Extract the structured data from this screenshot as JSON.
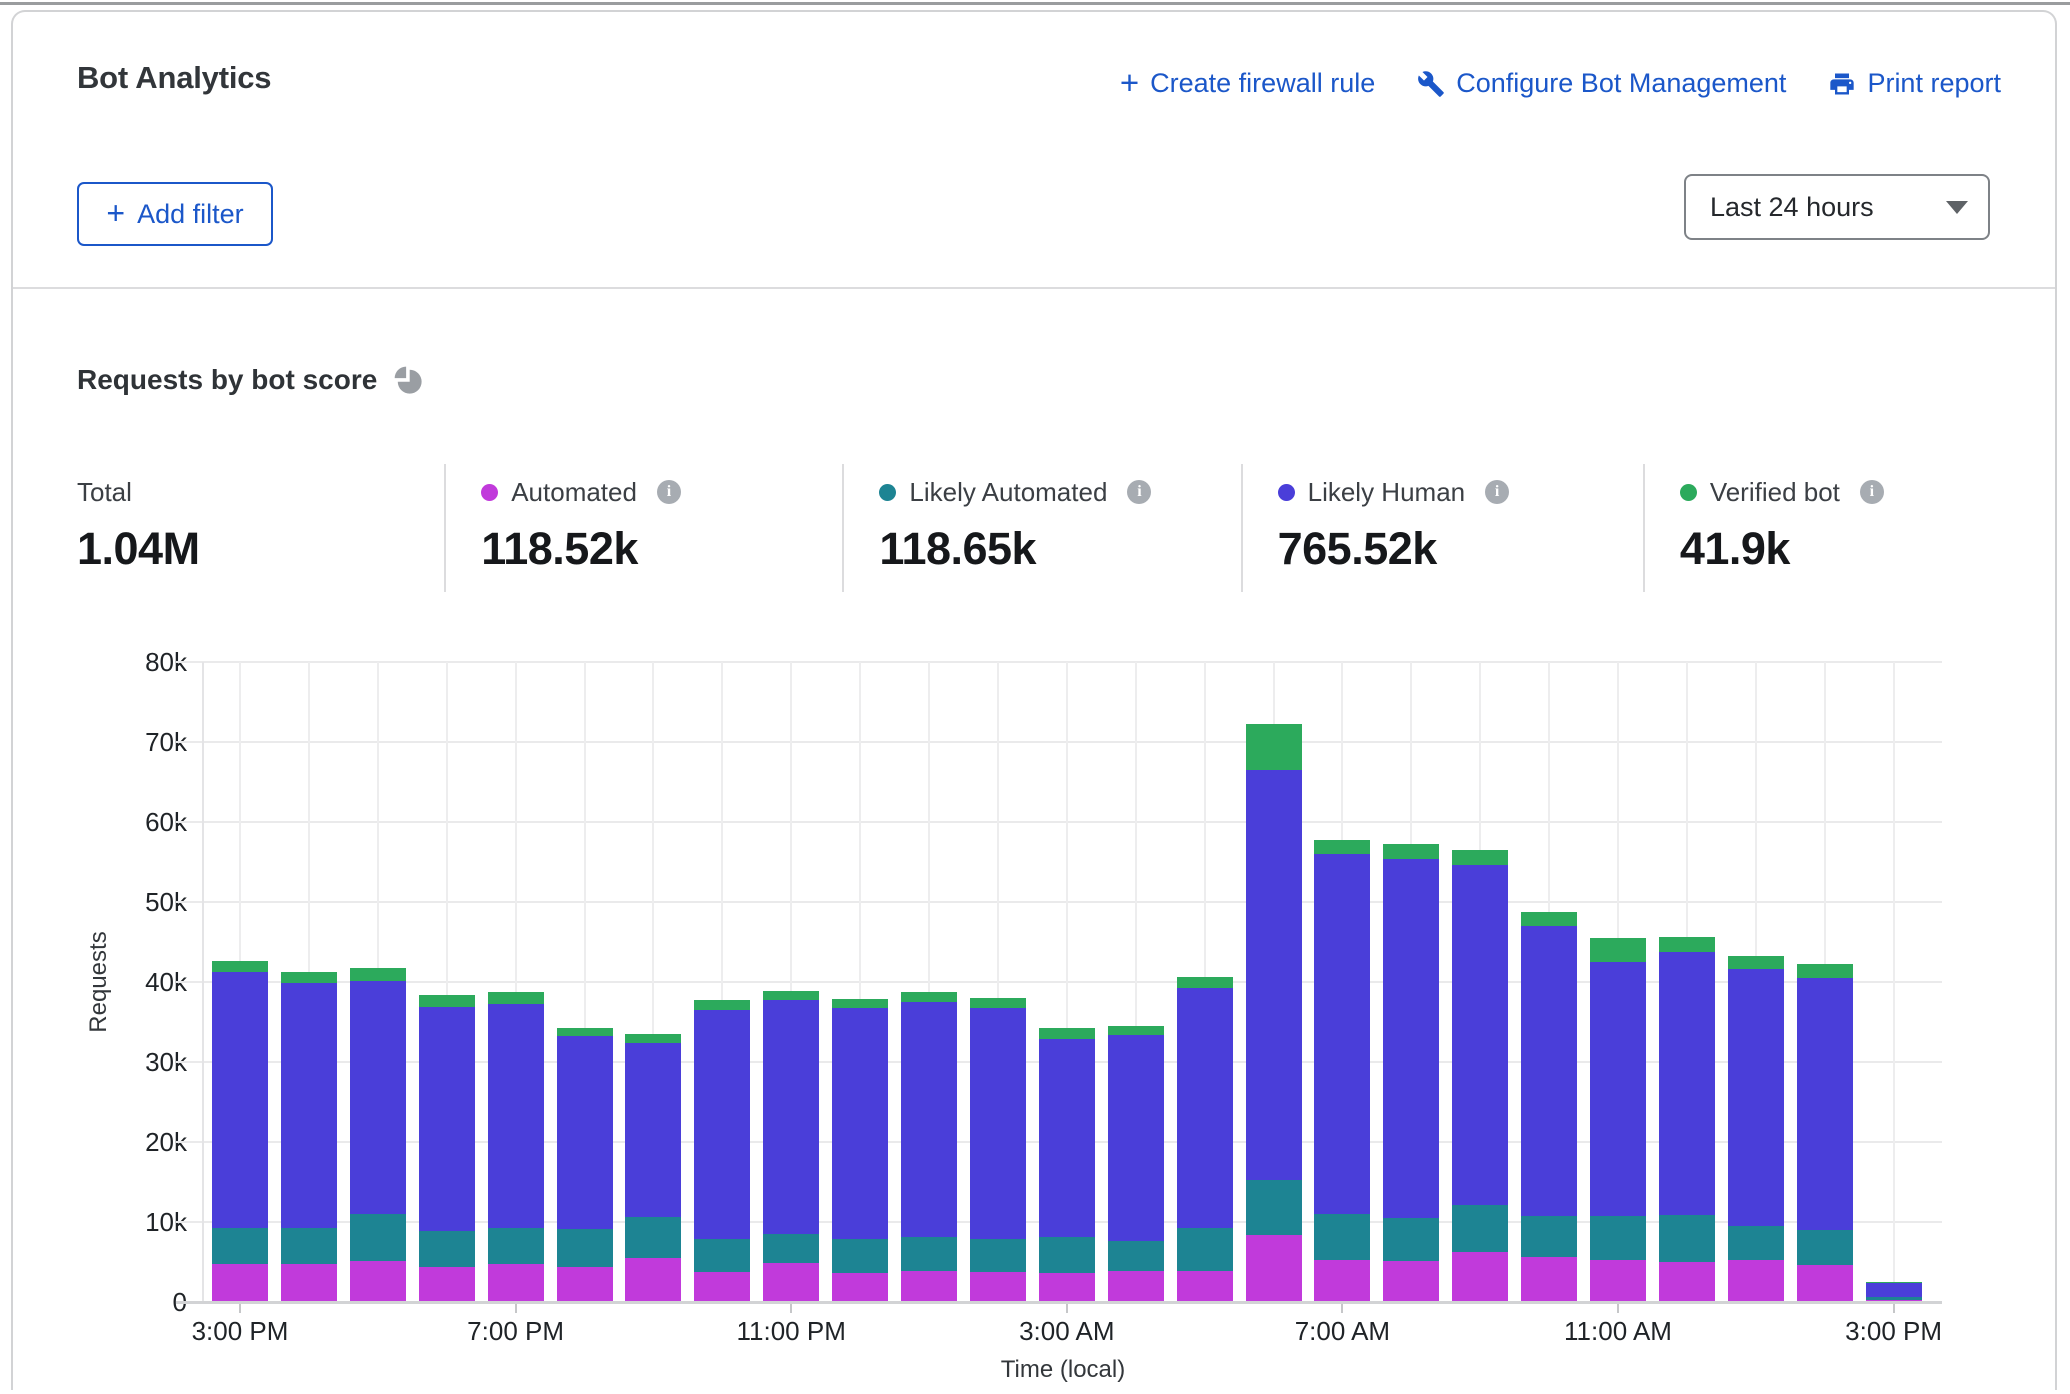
{
  "header": {
    "title": "Bot Analytics",
    "actions": [
      {
        "label": "Create firewall rule",
        "icon": "plus-icon"
      },
      {
        "label": "Configure Bot Management",
        "icon": "wrench-icon"
      },
      {
        "label": "Print report",
        "icon": "printer-icon"
      }
    ],
    "add_filter_label": "Add filter",
    "time_range": "Last 24 hours",
    "link_color": "#1b57c9"
  },
  "section": {
    "heading": "Requests by bot score",
    "stats": [
      {
        "label": "Total",
        "value": "1.04M"
      },
      {
        "label": "Automated",
        "value": "118.52k",
        "color": "#c13adb",
        "info": true
      },
      {
        "label": "Likely Automated",
        "value": "118.65k",
        "color": "#1d8493",
        "info": true
      },
      {
        "label": "Likely Human",
        "value": "765.52k",
        "color": "#4a3ed9",
        "info": true
      },
      {
        "label": "Verified bot",
        "value": "41.9k",
        "color": "#2caa5c",
        "info": true
      }
    ]
  },
  "chart_data": {
    "type": "bar",
    "stacked": true,
    "title": "Requests by bot score",
    "xlabel": "Time (local)",
    "ylabel": "Requests",
    "ylim": [
      0,
      80000
    ],
    "grid": true,
    "y_ticks": [
      "80k",
      "70k",
      "60k",
      "50k",
      "40k",
      "30k",
      "20k",
      "10k",
      "0"
    ],
    "x_tick_labels": [
      "3:00 PM",
      "7:00 PM",
      "11:00 PM",
      "3:00 AM",
      "7:00 AM",
      "11:00 AM",
      "3:00 PM"
    ],
    "x_tick_indices": [
      0,
      4,
      8,
      12,
      16,
      20,
      24
    ],
    "categories": [
      "3:00 PM",
      "4:00 PM",
      "5:00 PM",
      "6:00 PM",
      "7:00 PM",
      "8:00 PM",
      "9:00 PM",
      "10:00 PM",
      "11:00 PM",
      "12:00 AM",
      "1:00 AM",
      "2:00 AM",
      "3:00 AM",
      "4:00 AM",
      "5:00 AM",
      "6:00 AM",
      "7:00 AM",
      "8:00 AM",
      "9:00 AM",
      "10:00 AM",
      "11:00 AM",
      "12:00 PM",
      "1:00 PM",
      "2:00 PM",
      "3:00 PM"
    ],
    "series": [
      {
        "name": "Automated",
        "color": "#c13adb",
        "values": [
          4800,
          4800,
          5100,
          4400,
          4800,
          4400,
          5500,
          3700,
          4900,
          3600,
          3900,
          3800,
          3600,
          3900,
          3900,
          8400,
          5300,
          5100,
          6300,
          5600,
          5200,
          5000,
          5300,
          4600,
          300
        ]
      },
      {
        "name": "Likely Automated",
        "color": "#1d8493",
        "values": [
          4500,
          4500,
          5900,
          4500,
          4500,
          4700,
          5100,
          4200,
          3600,
          4300,
          4200,
          4100,
          4500,
          3700,
          5400,
          6900,
          5700,
          5400,
          5800,
          5200,
          5500,
          5900,
          4200,
          4400,
          300
        ]
      },
      {
        "name": "Likely Human",
        "color": "#4a3ed9",
        "values": [
          32000,
          30600,
          29100,
          28000,
          27900,
          24100,
          21800,
          28600,
          29200,
          28900,
          29400,
          28900,
          24800,
          25800,
          30000,
          51200,
          45000,
          44900,
          42500,
          36200,
          31800,
          32900,
          32100,
          31500,
          1800
        ]
      },
      {
        "name": "Verified bot",
        "color": "#2caa5c",
        "values": [
          1300,
          1300,
          1600,
          1500,
          1500,
          1100,
          1100,
          1200,
          1200,
          1100,
          1300,
          1200,
          1400,
          1100,
          1300,
          5800,
          1700,
          1900,
          1900,
          1800,
          3000,
          1800,
          1700,
          1800,
          100
        ]
      }
    ],
    "legend_position": "top"
  }
}
